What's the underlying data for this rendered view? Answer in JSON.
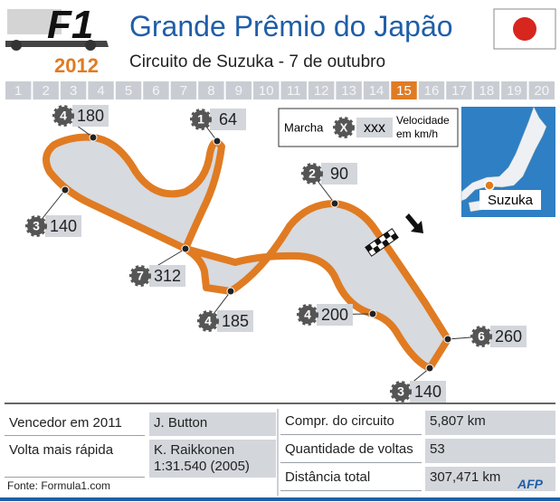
{
  "header": {
    "logo": "F1",
    "year": "2012",
    "title": "Grande Prêmio do Japão",
    "subtitle": "Circuito de Suzuka - 7 de outubro"
  },
  "rounds": {
    "items": [
      "1",
      "2",
      "3",
      "4",
      "5",
      "6",
      "7",
      "8",
      "9",
      "10",
      "11",
      "12",
      "13",
      "14",
      "15",
      "16",
      "17",
      "18",
      "19",
      "20"
    ],
    "highlighted": "15"
  },
  "legend": {
    "gear_label": "Marcha",
    "gear_symbol": "X",
    "speed_symbol": "xxx",
    "speed_label": "Velocidade em km/h"
  },
  "corners": [
    {
      "gear": 4,
      "speed": 180
    },
    {
      "gear": 1,
      "speed": 64
    },
    {
      "gear": 3,
      "speed": 140
    },
    {
      "gear": 7,
      "speed": 312
    },
    {
      "gear": 4,
      "speed": 185
    },
    {
      "gear": 2,
      "speed": 90
    },
    {
      "gear": 4,
      "speed": 200
    },
    {
      "gear": 6,
      "speed": 260
    },
    {
      "gear": 3,
      "speed": 140
    }
  ],
  "map": {
    "label": "Suzuka"
  },
  "stats": {
    "left": [
      {
        "label": "Vencedor em 2011",
        "value": "J. Button"
      },
      {
        "label": "Volta mais rápida",
        "value": "K. Raikkonen 1:31.540 (2005)"
      }
    ],
    "right": [
      {
        "label": "Compr. do circuito",
        "value": "5,807 km"
      },
      {
        "label": "Quantidade de voltas",
        "value": "53"
      },
      {
        "label": "Distância total",
        "value": "307,471 km"
      }
    ]
  },
  "footer": {
    "source": "Fonte: Formula1.com",
    "agency": "AFP"
  }
}
